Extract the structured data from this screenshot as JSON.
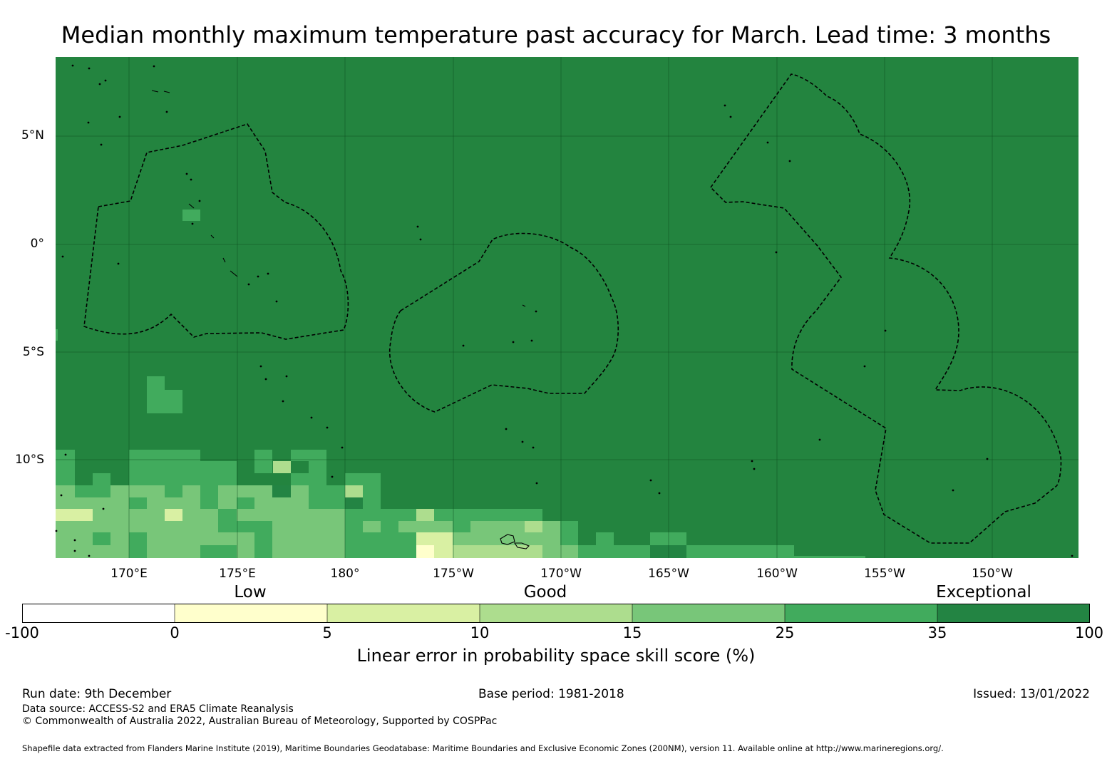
{
  "title": "Median monthly maximum temperature past accuracy for March. Lead time: 3 months",
  "map": {
    "background_color": "#23843f",
    "lat_labels": [
      "5°N",
      "0°",
      "5°S",
      "10°S"
    ],
    "lon_labels": [
      "170°E",
      "175°E",
      "180°",
      "175°W",
      "170°W",
      "165°W",
      "160°W",
      "155°W",
      "150°W"
    ]
  },
  "legend": {
    "categories": [
      "Low",
      "Good",
      "Exceptional"
    ],
    "tick_labels": [
      "-100",
      "0",
      "5",
      "10",
      "15",
      "25",
      "35",
      "100"
    ],
    "colors": [
      "#ffffff",
      "#ffffcc",
      "#d9f0a3",
      "#addd8e",
      "#78c679",
      "#41ab5d",
      "#238443"
    ],
    "title": "Linear error in probability space skill score (%)"
  },
  "footer": {
    "run_date": "Run date: 9th December",
    "base_period": "Base period: 1981-2018",
    "issued": "Issued: 13/01/2022",
    "data_source": "Data source: ACCESS-S2 and ERA5 Climate Reanalysis",
    "copyright": "© Commonwealth of Australia 2022, Australian Bureau of Meteorology, Supported by COSPPac",
    "shapefile": "Shapefile data extracted from Flanders Marine Institute (2019), Maritime Boundaries Geodatabase: Maritime Boundaries and Exclusive Economic Zones (200NM), version 11. Available online at http://www.marineregions.org/."
  }
}
